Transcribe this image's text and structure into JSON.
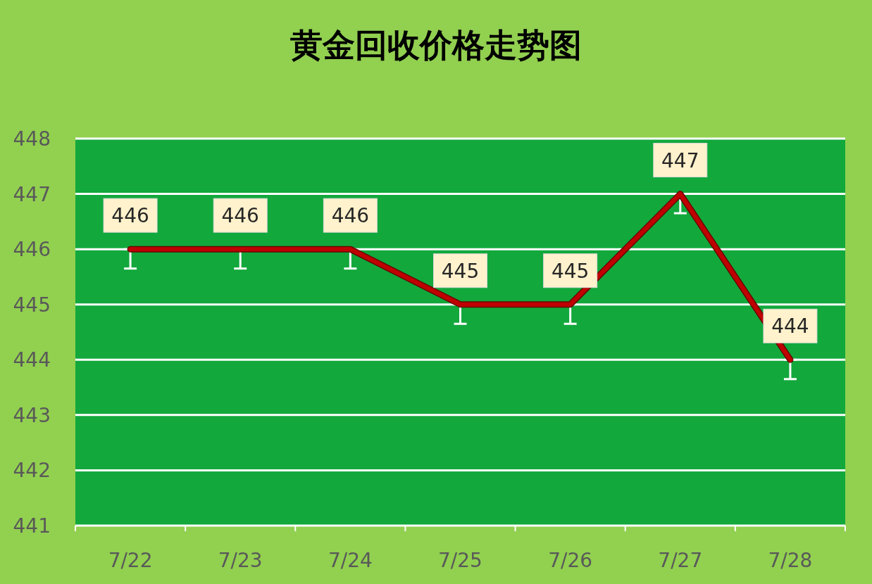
{
  "chart_data": {
    "type": "line",
    "title": "黄金回收价格走势图",
    "categories": [
      "7/22",
      "7/23",
      "7/24",
      "7/25",
      "7/26",
      "7/27",
      "7/28"
    ],
    "values": [
      446,
      446,
      446,
      445,
      445,
      447,
      444
    ],
    "errors": [
      [
        445.65,
        446
      ],
      [
        445.65,
        446
      ],
      [
        445.65,
        446
      ],
      [
        444.65,
        445
      ],
      [
        444.65,
        445
      ],
      [
        446.65,
        447
      ],
      [
        443.65,
        444
      ]
    ],
    "color": "#c00000",
    "ylim": [
      441,
      448
    ],
    "yticks": [
      441,
      442,
      443,
      444,
      445,
      446,
      447,
      448
    ],
    "grid": "y",
    "data_labels": true,
    "marker": "none"
  }
}
